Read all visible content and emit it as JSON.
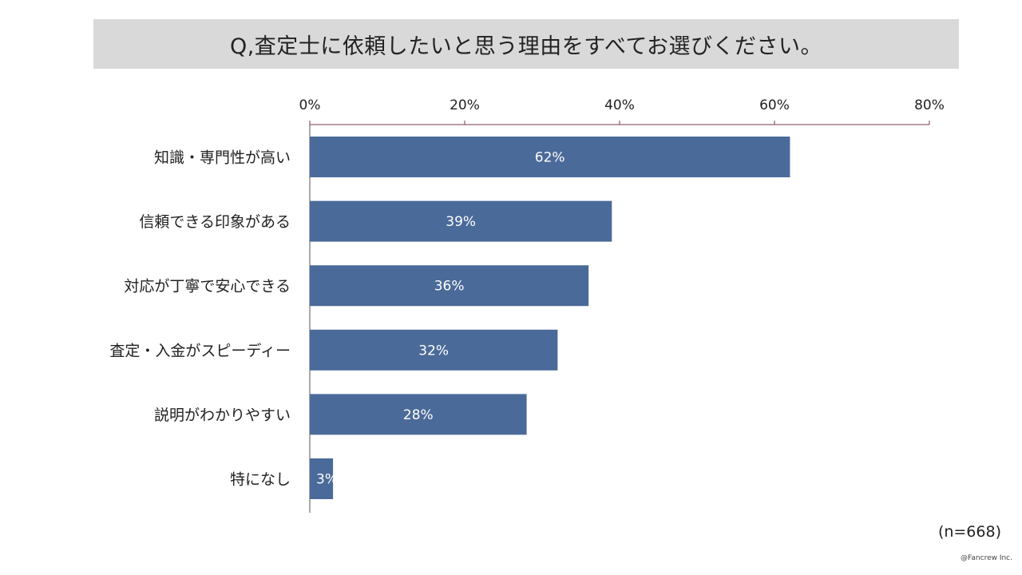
{
  "title": "Q,査定士に依頼したいと思う理由をすべてお選びください。",
  "sample_size": "(n=668)",
  "credit": "@Fancrew Inc.",
  "colors": {
    "bar": "#4a6a99",
    "title_bg": "#d9d9d9",
    "axis": "#7a3a4a"
  },
  "chart_data": {
    "type": "bar",
    "orientation": "horizontal",
    "title": "Q,査定士に依頼したいと思う理由をすべてお選びください。",
    "categories": [
      "知識・専門性が高い",
      "信頼できる印象がある",
      "対応が丁寧で安心できる",
      "査定・入金がスピーディー",
      "説明がわかりやすい",
      "特になし"
    ],
    "values": [
      62,
      39,
      36,
      32,
      28,
      3
    ],
    "data_labels": [
      "62%",
      "39%",
      "36%",
      "32%",
      "28%",
      "3%"
    ],
    "unit": "%",
    "xlim": [
      0,
      80
    ],
    "ticks": [
      0,
      20,
      40,
      60,
      80
    ],
    "tick_labels": [
      "0%",
      "20%",
      "40%",
      "60%",
      "80%"
    ],
    "axis_position": "top",
    "grid": false,
    "legend": "none"
  }
}
